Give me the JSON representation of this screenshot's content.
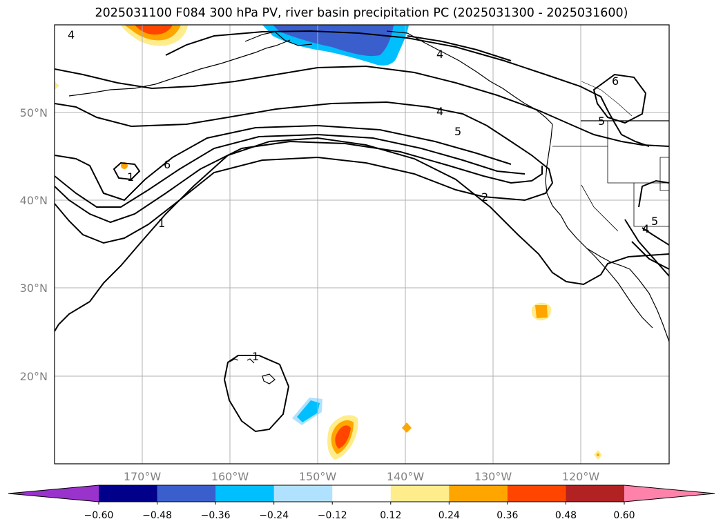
{
  "title": "2025031100 F084 300 hPa PV, river basin precipitation PC (2025031300 - 2025031600)",
  "map": {
    "projection": "PlateCarree",
    "lon_range": [
      -180,
      -110
    ],
    "lat_range": [
      10,
      60
    ],
    "lat_gridlines": [
      {
        "value": 50,
        "label": "50°N"
      },
      {
        "value": 40,
        "label": "40°N"
      },
      {
        "value": 30,
        "label": "30°N"
      },
      {
        "value": 20,
        "label": "20°N"
      }
    ],
    "lon_gridlines": [
      {
        "value": -170,
        "label": "170°W"
      },
      {
        "value": -160,
        "label": "160°W"
      },
      {
        "value": -150,
        "label": "150°W"
      },
      {
        "value": -140,
        "label": "140°W"
      },
      {
        "value": -130,
        "label": "130°W"
      },
      {
        "value": -120,
        "label": "120°W"
      }
    ],
    "pv_contour_labels": [
      "1",
      "2",
      "4",
      "5",
      "6"
    ]
  },
  "colorbar": {
    "ticks": [
      "−0.60",
      "−0.48",
      "−0.36",
      "−0.24",
      "−0.12",
      "0.12",
      "0.24",
      "0.36",
      "0.48",
      "0.60"
    ],
    "colors": [
      "#9933cc",
      "#00008b",
      "#3a5fcd",
      "#00bfff",
      "#b0e2ff",
      "#ffffff",
      "#ffec8b",
      "#ffa500",
      "#ff4500",
      "#b22222",
      "#ff82ab"
    ]
  }
}
